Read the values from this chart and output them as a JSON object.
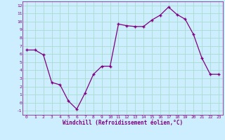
{
  "x": [
    0,
    1,
    2,
    3,
    4,
    5,
    6,
    7,
    8,
    9,
    10,
    11,
    12,
    13,
    14,
    15,
    16,
    17,
    18,
    19,
    20,
    21,
    22,
    23
  ],
  "y": [
    6.5,
    6.5,
    5.9,
    2.5,
    2.2,
    0.2,
    -0.8,
    1.2,
    3.5,
    4.5,
    4.5,
    9.7,
    9.5,
    9.4,
    9.4,
    10.2,
    10.8,
    11.8,
    10.9,
    10.3,
    8.4,
    5.5,
    3.5,
    3.5
  ],
  "line_color": "#800080",
  "marker_color": "#800080",
  "bg_color": "#cceeff",
  "grid_color": "#aaddcc",
  "axis_label_color": "#800080",
  "tick_color": "#800080",
  "xlabel": "Windchill (Refroidissement éolien,°C)",
  "ylabel": "",
  "xlim": [
    -0.5,
    23.5
  ],
  "ylim": [
    -1.5,
    12.5
  ],
  "yticks": [
    -1,
    0,
    1,
    2,
    3,
    4,
    5,
    6,
    7,
    8,
    9,
    10,
    11,
    12
  ],
  "xticks": [
    0,
    1,
    2,
    3,
    4,
    5,
    6,
    7,
    8,
    9,
    10,
    11,
    12,
    13,
    14,
    15,
    16,
    17,
    18,
    19,
    20,
    21,
    22,
    23
  ]
}
